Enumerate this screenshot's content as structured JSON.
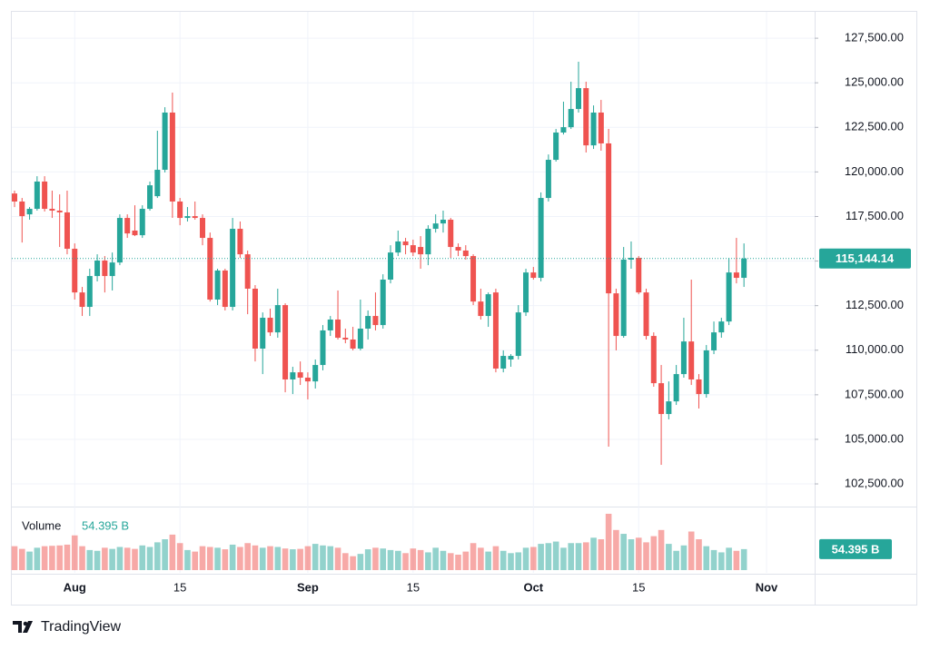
{
  "chart_data": {
    "type": "candlestick",
    "x": [
      "07-24",
      "07-25",
      "07-26",
      "07-27",
      "07-28",
      "07-29",
      "07-30",
      "07-31",
      "08-01",
      "08-02",
      "08-03",
      "08-04",
      "08-05",
      "08-06",
      "08-07",
      "08-08",
      "08-09",
      "08-10",
      "08-11",
      "08-12",
      "08-13",
      "08-14",
      "08-15",
      "08-16",
      "08-17",
      "08-18",
      "08-19",
      "08-20",
      "08-21",
      "08-22",
      "08-23",
      "08-24",
      "08-25",
      "08-26",
      "08-27",
      "08-28",
      "08-29",
      "08-30",
      "08-31",
      "09-01",
      "09-02",
      "09-03",
      "09-04",
      "09-05",
      "09-06",
      "09-07",
      "09-08",
      "09-09",
      "09-10",
      "09-11",
      "09-12",
      "09-13",
      "09-14",
      "09-15",
      "09-16",
      "09-17",
      "09-18",
      "09-19",
      "09-20",
      "09-21",
      "09-22",
      "09-23",
      "09-24",
      "09-25",
      "09-26",
      "09-27",
      "09-28",
      "09-29",
      "09-30",
      "10-01",
      "10-02",
      "10-03",
      "10-04",
      "10-05",
      "10-06",
      "10-07",
      "10-08",
      "10-09",
      "10-10",
      "10-11",
      "10-12",
      "10-13",
      "10-14",
      "10-15",
      "10-16",
      "10-17",
      "10-18",
      "10-19",
      "10-20",
      "10-21",
      "10-22",
      "10-23",
      "10-24",
      "10-25",
      "10-26",
      "10-27",
      "10-28",
      "10-29"
    ],
    "open": [
      118790,
      118340,
      117620,
      117930,
      119460,
      117930,
      117830,
      117730,
      115690,
      113240,
      112430,
      114160,
      115030,
      114160,
      114920,
      117420,
      116710,
      116450,
      117930,
      118640,
      120120,
      123330,
      118340,
      117420,
      117520,
      117420,
      116300,
      112840,
      114470,
      112430,
      116810,
      115380,
      113450,
      110090,
      111820,
      111000,
      112530,
      108360,
      108760,
      108460,
      108250,
      109170,
      111110,
      111720,
      110700,
      110600,
      110090,
      111210,
      111920,
      111410,
      113960,
      115480,
      116100,
      115890,
      115790,
      115380,
      116810,
      117110,
      117320,
      115790,
      115590,
      115280,
      112730,
      111920,
      113240,
      108970,
      109480,
      109680,
      112120,
      114360,
      114060,
      118540,
      120680,
      122210,
      122510,
      123530,
      124700,
      121490,
      123330,
      121600,
      113190,
      110800,
      115080,
      115180,
      113240,
      110800,
      108150,
      106420,
      107130,
      108660,
      110490,
      108360,
      107540,
      109990,
      111000,
      111610,
      114360,
      114060
    ],
    "high": [
      118950,
      118540,
      118030,
      119760,
      119760,
      118950,
      118740,
      118950,
      115990,
      113550,
      114570,
      115380,
      115280,
      115480,
      117620,
      117620,
      118130,
      118130,
      119460,
      122310,
      123630,
      124450,
      118540,
      118030,
      118340,
      117620,
      116600,
      114570,
      114570,
      117420,
      117220,
      115590,
      113650,
      112120,
      112330,
      113450,
      112630,
      109070,
      109370,
      108760,
      109480,
      111410,
      111920,
      113350,
      111210,
      111310,
      112840,
      112230,
      113240,
      114260,
      115890,
      116710,
      116300,
      116200,
      116400,
      117010,
      117620,
      117830,
      117420,
      115990,
      115890,
      115380,
      113450,
      113240,
      113450,
      109990,
      109780,
      112530,
      114570,
      114670,
      118850,
      120980,
      122410,
      123940,
      125060,
      126180,
      125060,
      123730,
      124040,
      122410,
      113450,
      115790,
      116100,
      115280,
      113450,
      111000,
      109170,
      108250,
      109170,
      111820,
      113960,
      108660,
      110290,
      111610,
      111820,
      115180,
      116300,
      115990
    ],
    "low": [
      118030,
      116040,
      117320,
      117830,
      117780,
      117420,
      115790,
      115380,
      112840,
      111920,
      111920,
      113860,
      113240,
      113350,
      114770,
      116300,
      116400,
      116300,
      117830,
      118540,
      119970,
      117420,
      117010,
      117220,
      117320,
      115890,
      112730,
      112530,
      112230,
      112230,
      115180,
      112020,
      109370,
      108660,
      110800,
      110700,
      107640,
      107540,
      108050,
      107240,
      107850,
      108870,
      110800,
      110600,
      110390,
      109990,
      109990,
      110600,
      111110,
      111210,
      113750,
      115280,
      115380,
      115280,
      114570,
      114770,
      116600,
      116600,
      115180,
      115280,
      115080,
      112530,
      111720,
      111310,
      108760,
      108760,
      109070,
      109480,
      111920,
      113960,
      113860,
      118340,
      120580,
      122100,
      122410,
      123330,
      121090,
      121290,
      121190,
      104590,
      109990,
      110700,
      114570,
      113140,
      110600,
      107950,
      103570,
      106120,
      106930,
      108460,
      108050,
      106730,
      107340,
      109780,
      110700,
      111410,
      113750,
      113550
    ],
    "close": [
      118340,
      117520,
      117930,
      119460,
      117930,
      117830,
      117730,
      115690,
      113240,
      112430,
      114160,
      115030,
      114160,
      114920,
      117420,
      116550,
      116450,
      117930,
      119250,
      120120,
      123330,
      118340,
      117420,
      117520,
      117420,
      116300,
      112840,
      114470,
      112430,
      116810,
      115380,
      113450,
      110090,
      111820,
      111000,
      112530,
      108360,
      108760,
      108460,
      108250,
      109170,
      111110,
      111720,
      110700,
      110600,
      110090,
      111210,
      111920,
      111410,
      113960,
      115480,
      116100,
      115890,
      115480,
      115380,
      116810,
      117110,
      117320,
      115790,
      115590,
      115280,
      112730,
      111920,
      113140,
      108970,
      109680,
      109680,
      112120,
      114360,
      114060,
      118540,
      120680,
      122210,
      122510,
      123530,
      124700,
      121490,
      123330,
      121600,
      113190,
      110800,
      115080,
      115180,
      113240,
      110800,
      108150,
      106420,
      107130,
      108660,
      110490,
      108360,
      107540,
      109990,
      111000,
      111610,
      114360,
      114060,
      115144.14
    ],
    "volume": [
      62,
      55,
      48,
      58,
      62,
      63,
      64,
      66,
      90,
      62,
      52,
      50,
      58,
      55,
      60,
      58,
      55,
      64,
      60,
      72,
      80,
      92,
      70,
      52,
      48,
      62,
      60,
      58,
      54,
      66,
      60,
      70,
      64,
      58,
      62,
      60,
      56,
      54,
      55,
      62,
      68,
      64,
      62,
      58,
      44,
      36,
      42,
      54,
      58,
      56,
      52,
      50,
      44,
      56,
      52,
      46,
      58,
      50,
      44,
      40,
      48,
      70,
      58,
      48,
      62,
      50,
      44,
      46,
      58,
      60,
      68,
      70,
      74,
      58,
      70,
      70,
      72,
      84,
      80,
      146,
      104,
      94,
      80,
      84,
      72,
      88,
      104,
      68,
      50,
      64,
      100,
      80,
      62,
      52,
      46,
      58,
      50,
      54.395
    ],
    "volume_title": "Volume",
    "volume_label": "54.395 B",
    "last_price_label": "115,144.14",
    "up_color": "#26a69a",
    "down_color": "#ef5350",
    "ylim": [
      101280,
      128880
    ],
    "yticks": [
      {
        "value": 102500,
        "label": "102,500.00"
      },
      {
        "value": 105000,
        "label": "105,000.00"
      },
      {
        "value": 107500,
        "label": "107,500.00"
      },
      {
        "value": 110000,
        "label": "110,000.00"
      },
      {
        "value": 112500,
        "label": "112,500.00"
      },
      {
        "value": 115000,
        "label": "115,000.00"
      },
      {
        "value": 117500,
        "label": "117,500.00"
      },
      {
        "value": 120000,
        "label": "120,000.00"
      },
      {
        "value": 122500,
        "label": "122,500.00"
      },
      {
        "value": 125000,
        "label": "125,000.00"
      },
      {
        "value": 127500,
        "label": "127,500.00"
      }
    ],
    "vlim": [
      0,
      160
    ],
    "xticks": [
      {
        "value": "08-01",
        "label": "Aug"
      },
      {
        "value": "08-15",
        "label": "15"
      },
      {
        "value": "09-01",
        "label": "Sep"
      },
      {
        "value": "09-15",
        "label": "15"
      },
      {
        "value": "10-01",
        "label": "Oct"
      },
      {
        "value": "10-15",
        "label": "15"
      },
      {
        "value": "11-01",
        "label": "Nov"
      }
    ],
    "grid": true,
    "brand": "TradingView"
  }
}
